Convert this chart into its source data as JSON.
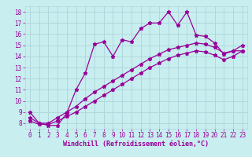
{
  "title": "",
  "xlabel": "Windchill (Refroidissement éolien,°C)",
  "bg_color": "#c8eef0",
  "grid_color": "#b0d8dc",
  "line_color": "#990099",
  "xlim": [
    -0.5,
    23.5
  ],
  "ylim": [
    7.5,
    18.5
  ],
  "xticks": [
    0,
    1,
    2,
    3,
    4,
    5,
    6,
    7,
    8,
    9,
    10,
    11,
    12,
    13,
    14,
    15,
    16,
    17,
    18,
    19,
    20,
    21,
    22,
    23
  ],
  "yticks": [
    8,
    9,
    10,
    11,
    12,
    13,
    14,
    15,
    16,
    17,
    18
  ],
  "line1_x": [
    0,
    1,
    2,
    3,
    4,
    5,
    6,
    7,
    8,
    9,
    10,
    11,
    12,
    13,
    14,
    15,
    16,
    17,
    18,
    19,
    20,
    21,
    22,
    23
  ],
  "line1_y": [
    9.0,
    8.0,
    7.8,
    7.8,
    8.9,
    11.0,
    12.5,
    15.1,
    15.3,
    14.0,
    15.5,
    15.3,
    16.5,
    17.0,
    17.0,
    18.0,
    16.8,
    18.0,
    15.9,
    15.8,
    15.2,
    14.2,
    14.5,
    14.5
  ],
  "line2_x": [
    0,
    1,
    2,
    3,
    4,
    5,
    6,
    7,
    8,
    9,
    10,
    11,
    12,
    13,
    14,
    15,
    16,
    17,
    18,
    19,
    20,
    21,
    22,
    23
  ],
  "line2_y": [
    8.5,
    8.0,
    8.0,
    8.5,
    9.0,
    9.5,
    10.2,
    10.8,
    11.3,
    11.8,
    12.3,
    12.8,
    13.3,
    13.8,
    14.2,
    14.6,
    14.8,
    15.0,
    15.2,
    15.1,
    14.8,
    14.3,
    14.5,
    15.0
  ],
  "line3_x": [
    0,
    1,
    2,
    3,
    4,
    5,
    6,
    7,
    8,
    9,
    10,
    11,
    12,
    13,
    14,
    15,
    16,
    17,
    18,
    19,
    20,
    21,
    22,
    23
  ],
  "line3_y": [
    8.2,
    7.9,
    7.9,
    8.2,
    8.6,
    9.0,
    9.5,
    10.0,
    10.5,
    11.0,
    11.5,
    12.0,
    12.5,
    13.0,
    13.4,
    13.8,
    14.1,
    14.3,
    14.5,
    14.4,
    14.1,
    13.7,
    14.0,
    14.5
  ],
  "tick_fontsize": 5.5,
  "xlabel_fontsize": 6.0
}
